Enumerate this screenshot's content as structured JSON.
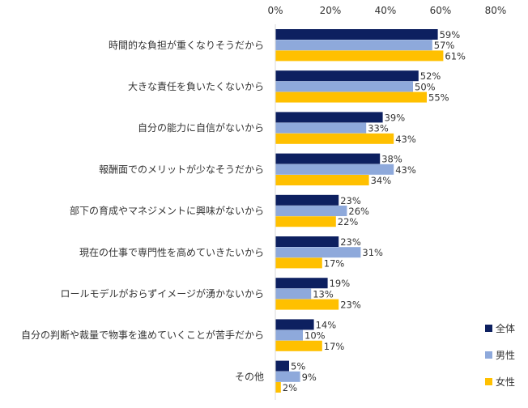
{
  "chart_data": {
    "type": "bar",
    "orientation": "horizontal",
    "xlim": [
      0,
      80
    ],
    "ticks": [
      0,
      20,
      40,
      60,
      80
    ],
    "tick_labels": [
      "0%",
      "20%",
      "40%",
      "60%",
      "80%"
    ],
    "grid": false,
    "legend_position": "bottom-right",
    "categories": [
      "時間的な負担が重くなりそうだから",
      "大きな責任を負いたくないから",
      "自分の能力に自信がないから",
      "報酬面でのメリットが少なそうだから",
      "部下の育成やマネジメントに興味がないから",
      "現在の仕事で専門性を高めていきたいから",
      "ロールモデルがおらずイメージが湧かないから",
      "自分の判断や裁量で物事を進めていくことが苦手だから",
      "その他"
    ],
    "series": [
      {
        "name": "全体",
        "color": "#0d2060",
        "values": [
          59,
          52,
          39,
          38,
          23,
          23,
          19,
          14,
          5
        ]
      },
      {
        "name": "男性",
        "color": "#8ea9db",
        "values": [
          57,
          50,
          33,
          43,
          26,
          31,
          13,
          10,
          9
        ]
      },
      {
        "name": "女性",
        "color": "#ffc000",
        "values": [
          61,
          55,
          43,
          34,
          22,
          17,
          23,
          17,
          2
        ]
      }
    ],
    "value_suffix": "%"
  }
}
